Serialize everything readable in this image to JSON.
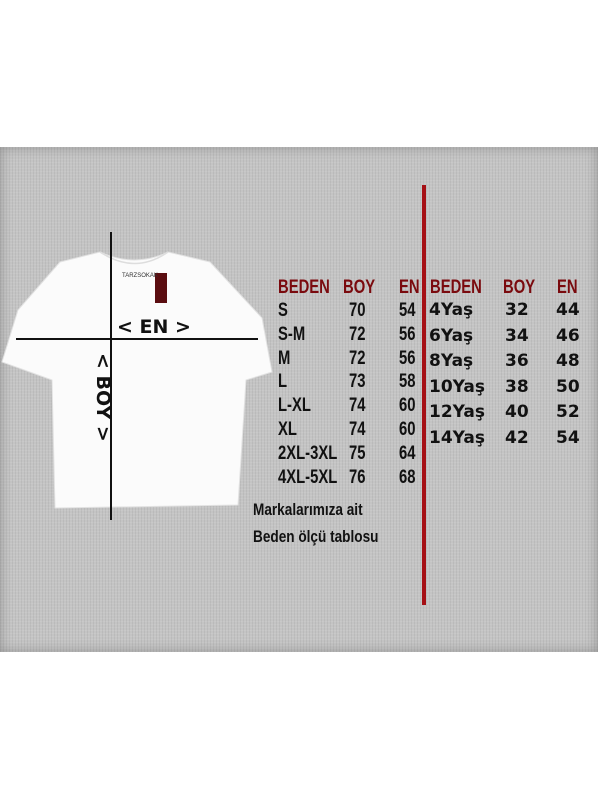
{
  "garment": {
    "brand_label": "TARZSOKAK",
    "width_label": "< EN >",
    "length_label": "< BOY >"
  },
  "adult_table": {
    "headers": [
      "BEDEN",
      "BOY",
      "EN"
    ],
    "rows": [
      [
        "S",
        "70",
        "54"
      ],
      [
        "S-M",
        "72",
        "56"
      ],
      [
        "M",
        "72",
        "56"
      ],
      [
        "L",
        "73",
        "58"
      ],
      [
        "L-XL",
        "74",
        "60"
      ],
      [
        "XL",
        "74",
        "60"
      ],
      [
        "2XL-3XL",
        "75",
        "64"
      ],
      [
        "4XL-5XL",
        "76",
        "68"
      ]
    ]
  },
  "kids_table": {
    "headers": [
      "BEDEN",
      "BOY",
      "EN"
    ],
    "rows": [
      [
        "4Yaş",
        "32",
        "44"
      ],
      [
        "6Yaş",
        "34",
        "46"
      ],
      [
        "8Yaş",
        "36",
        "48"
      ],
      [
        "10Yaş",
        "38",
        "50"
      ],
      [
        "12Yaş",
        "40",
        "52"
      ],
      [
        "14Yaş",
        "42",
        "54"
      ]
    ]
  },
  "footer": {
    "line1": "Markalarımıza ait",
    "line2": "Beden ölçü tablosu"
  },
  "colors": {
    "header": "#7a0a0e",
    "divider": "#a50f14",
    "background": "#c4c4c4"
  }
}
